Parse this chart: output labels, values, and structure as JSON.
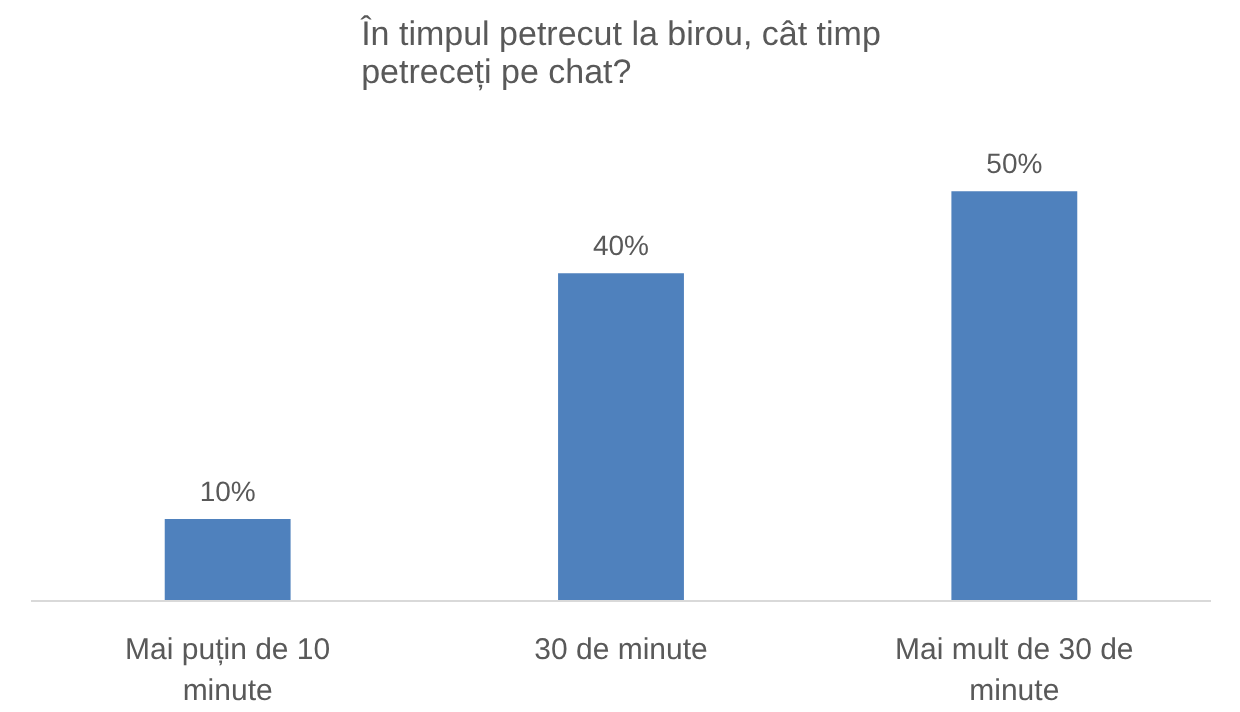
{
  "chart_data": {
    "type": "bar",
    "title": "În timpul petrecut la birou, cât timp petreceți pe chat?",
    "categories": [
      "Mai puțin de 10 minute",
      "30 de minute",
      "Mai mult de 30 de minute"
    ],
    "values": [
      10,
      40,
      50
    ],
    "value_labels": [
      "10%",
      "40%",
      "50%"
    ],
    "color": "#4f81bd",
    "grid": false
  }
}
